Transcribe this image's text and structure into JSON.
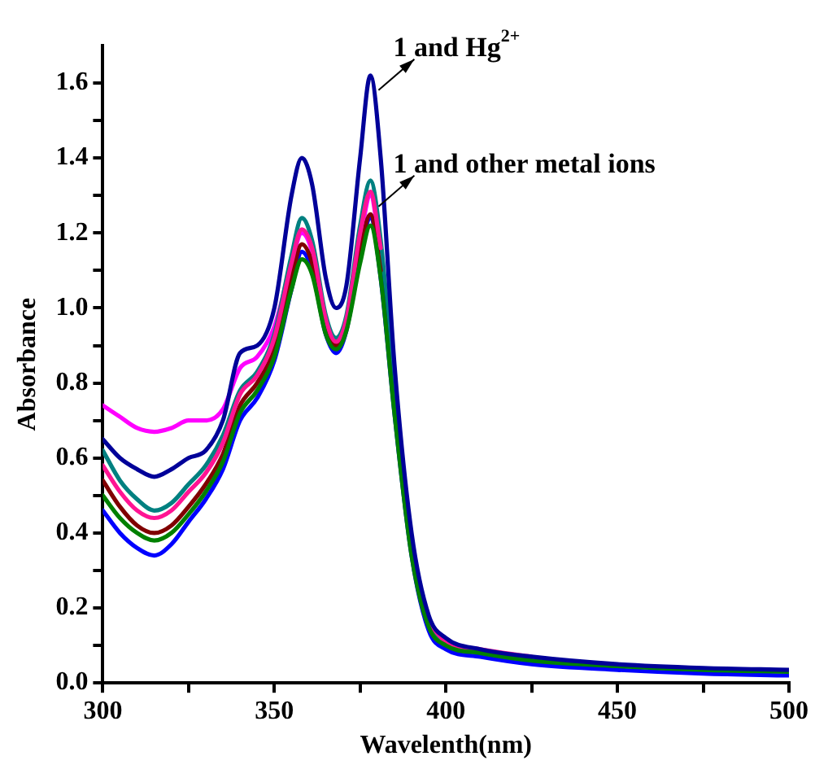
{
  "chart_data": {
    "type": "line",
    "xlabel": "Wavelenth(nm)",
    "ylabel": "Absorbance",
    "x": [
      300,
      305,
      310,
      315,
      320,
      325,
      330,
      335,
      340,
      345,
      350,
      355,
      358,
      361,
      365,
      368,
      371,
      375,
      378,
      381,
      385,
      390,
      395,
      400,
      410,
      425,
      450,
      475,
      500
    ],
    "series": [
      {
        "color": "#ff00ff",
        "values": [
          0.74,
          0.71,
          0.68,
          0.67,
          0.68,
          0.7,
          0.7,
          0.73,
          0.84,
          0.87,
          0.95,
          1.12,
          1.2,
          1.15,
          0.96,
          0.9,
          0.96,
          1.18,
          1.3,
          1.15,
          null,
          null,
          null,
          null,
          null,
          null,
          null,
          null,
          null
        ]
      },
      {
        "color": "#008080",
        "values": [
          0.62,
          0.54,
          0.49,
          0.46,
          0.48,
          0.53,
          0.58,
          0.66,
          0.78,
          0.83,
          0.93,
          1.14,
          1.24,
          1.18,
          0.98,
          0.92,
          0.98,
          1.22,
          1.34,
          1.18,
          0.78,
          0.36,
          0.16,
          0.11,
          null,
          null,
          null,
          null,
          null
        ]
      },
      {
        "color": "#0000ff",
        "values": [
          0.46,
          0.4,
          0.36,
          0.34,
          0.37,
          0.43,
          0.49,
          0.57,
          0.7,
          0.76,
          0.86,
          1.05,
          1.15,
          1.1,
          0.93,
          0.88,
          0.94,
          1.14,
          1.24,
          1.08,
          0.72,
          0.34,
          0.14,
          0.09,
          0.07,
          0.05,
          0.035,
          0.025,
          0.02
        ]
      },
      {
        "color": "#800000",
        "values": [
          0.54,
          0.47,
          0.42,
          0.4,
          0.42,
          0.47,
          0.53,
          0.61,
          0.74,
          0.8,
          0.89,
          1.08,
          1.17,
          1.12,
          0.94,
          0.9,
          0.95,
          1.15,
          1.25,
          1.1,
          null,
          null,
          null,
          null,
          null,
          null,
          null,
          null,
          null
        ]
      },
      {
        "color": "#ff1493",
        "values": [
          0.58,
          0.51,
          0.46,
          0.44,
          0.46,
          0.51,
          0.56,
          0.64,
          0.77,
          0.82,
          0.92,
          1.12,
          1.21,
          1.16,
          0.97,
          0.91,
          0.97,
          1.2,
          1.31,
          1.16,
          null,
          null,
          0.16,
          0.11,
          0.09,
          0.07,
          null,
          null,
          null
        ]
      },
      {
        "color": "#008000",
        "values": [
          0.5,
          0.44,
          0.4,
          0.38,
          0.4,
          0.45,
          0.51,
          0.59,
          0.72,
          0.78,
          0.87,
          1.05,
          1.13,
          1.09,
          0.93,
          0.89,
          0.94,
          1.12,
          1.22,
          1.08,
          0.72,
          0.34,
          0.15,
          0.1,
          0.08,
          0.06,
          0.045,
          0.035,
          0.03
        ]
      },
      {
        "color": "#000099",
        "values": [
          0.65,
          0.6,
          0.57,
          0.55,
          0.57,
          0.6,
          0.62,
          0.7,
          0.88,
          0.9,
          1.0,
          1.3,
          1.4,
          1.33,
          1.08,
          1.0,
          1.06,
          1.4,
          1.62,
          1.4,
          0.85,
          0.4,
          0.18,
          0.12,
          0.09,
          0.07,
          0.05,
          0.04,
          0.035
        ]
      }
    ],
    "xlim": [
      300,
      500
    ],
    "xticks": [
      300,
      {
        "value": 325,
        "label": null
      },
      350,
      {
        "value": 375,
        "label": null
      },
      400,
      {
        "value": 425,
        "label": null
      },
      450,
      {
        "value": 475,
        "label": null
      },
      500
    ],
    "ylim": [
      0,
      1.7
    ],
    "yticks": [
      {
        "value": 0,
        "label": "0.0"
      },
      {
        "value": 0.1,
        "label": null
      },
      {
        "value": 0.2,
        "label": "0.2"
      },
      {
        "value": 0.3,
        "label": null
      },
      {
        "value": 0.4,
        "label": "0.4"
      },
      {
        "value": 0.5,
        "label": null
      },
      {
        "value": 0.6,
        "label": "0.6"
      },
      {
        "value": 0.7,
        "label": null
      },
      {
        "value": 0.8,
        "label": "0.8"
      },
      {
        "value": 0.9,
        "label": null
      },
      {
        "value": 1.0,
        "label": "1.0"
      },
      {
        "value": 1.1,
        "label": null
      },
      {
        "value": 1.2,
        "label": "1.2"
      },
      {
        "value": 1.3,
        "label": null
      },
      {
        "value": 1.4,
        "label": "1.4"
      },
      {
        "value": 1.5,
        "label": null
      },
      {
        "value": 1.6,
        "label": "1.6"
      }
    ],
    "annotations": [
      {
        "text": "1 and Hg$^{2+}$",
        "x": 378,
        "y": 1.62
      },
      {
        "text": "1 and other metal ions",
        "x": 378,
        "y": 1.31
      }
    ],
    "grid": false,
    "legend": false,
    "marker": "none",
    "line_style": "solid"
  }
}
